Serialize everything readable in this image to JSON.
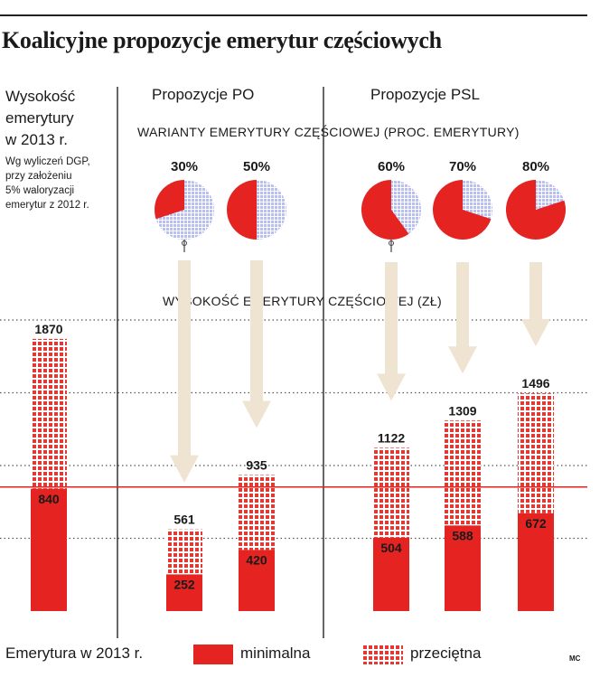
{
  "title": "Koalicyjne propozycje emerytur częściowych",
  "left_panel": {
    "heading": "Wysokość\nemerytury\nw 2013 r.",
    "note": "Wg wyliczeń DGP,\nprzy założeniu\n5% waloryzacji\nemerytur z 2012 r."
  },
  "sections": {
    "po": "Propozycje PO",
    "psl": "Propozycje PSL"
  },
  "variants_title": "WARIANTY EMERYTURY CZĘŚCIOWEJ (PROC. EMERYTURY)",
  "amount_title": "WYSOKOŚĆ EMERYTURY CZĘŚCIOWEJ (ZŁ)",
  "legend": {
    "lead": "Emerytura w 2013 r.",
    "min": "minimalna",
    "avg": "przeciętna"
  },
  "credit": "MC",
  "colors": {
    "red": "#e52421",
    "pattern": "#d81e1e",
    "arrow": "#efe3d2",
    "grid": "#555555",
    "divider": "#333333"
  },
  "chart_data": {
    "type": "bar",
    "categories": [
      "",
      "30%",
      "50%",
      "60%",
      "70%",
      "80%"
    ],
    "series": [
      {
        "name": "minimalna",
        "values": [
          840,
          252,
          420,
          504,
          588,
          672
        ]
      },
      {
        "name": "przeciętna",
        "values": [
          1870,
          561,
          935,
          1122,
          1309,
          1496
        ]
      }
    ],
    "variant_percent": [
      null,
      30,
      50,
      60,
      70,
      80
    ],
    "reference_line": 840,
    "ylim": [
      0,
      2000
    ],
    "grid": true,
    "legend_position": "bottom"
  }
}
